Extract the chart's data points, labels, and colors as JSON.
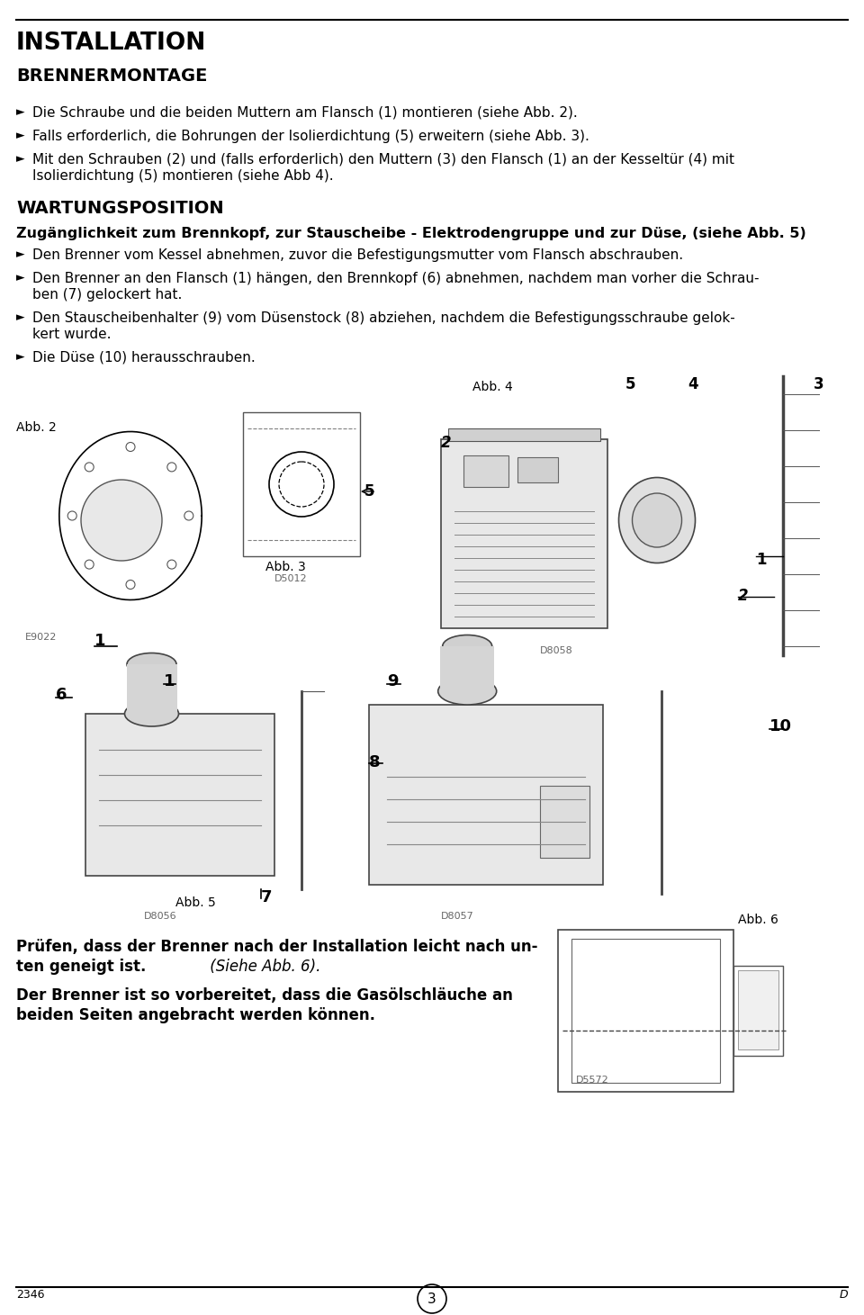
{
  "bg": "#ffffff",
  "title1": "INSTALLATION",
  "title2": "BRENNERMONTAGE",
  "b1_1": "Die Schraube und die beiden Muttern am Flansch (1) montieren (siehe Abb. 2).",
  "b1_2": "Falls erforderlich, die Bohrungen der Isolierdichtung (5) erweitern (siehe Abb. 3).",
  "b1_3a": "Mit den Schrauben (2) und (falls erforderlich) den Muttern (3) den Flansch (1) an der Kesseltür (4) mit",
  "b1_3b": "Isolierdichtung (5) montieren (siehe Abb 4).",
  "sec2_title": "WARTUNGSPOSITION",
  "sec2_sub": "Zugänglichkeit zum Brennkopf, zur Stauscheibe - Elektrodengruppe und zur Düse, (siehe Abb. 5)",
  "b2_1": "Den Brenner vom Kessel abnehmen, zuvor die Befestigungsmutter vom Flansch abschrauben.",
  "b2_2a": "Den Brenner an den Flansch (1) hängen, den Brennkopf (6) abnehmen, nachdem man vorher die Schrau-",
  "b2_2b": "ben (7) gelockert hat.",
  "b2_3a": "Den Stauscheibenhalter (9) vom Düsenstock (8) abziehen, nachdem die Befestigungsschraube gelok-",
  "b2_3b": "kert wurde.",
  "b2_4": "Die Düse (10) herausschrauben.",
  "bt1a": "Prüfen, dass der Brenner nach der Installation leicht nach un-",
  "bt1b": "ten geneigt ist.",
  "bt1c": " (Siehe Abb. 6).",
  "bt2a": "Der Brenner ist so vorbereitet, dass die Gasölschläuche an",
  "bt2b": "beiden Seiten angebracht werden können.",
  "page_num": "3",
  "page_left": "2346",
  "page_right": "D"
}
